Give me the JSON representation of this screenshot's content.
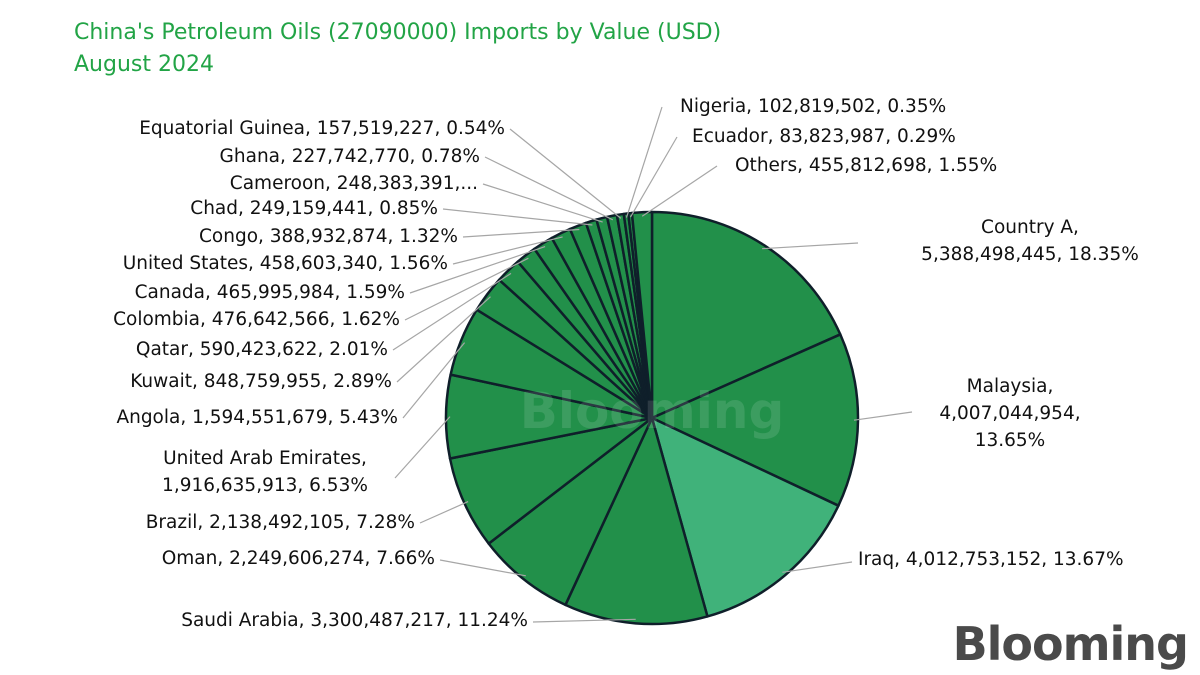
{
  "title_line1": "China's Petroleum Oils (27090000) Imports by Value (USD)",
  "title_line2": "August 2024",
  "watermark": "Blooming",
  "logo": "Blooming",
  "colors": {
    "title": "#22a446",
    "slice": "#22904a",
    "slice_highlight": "#40b27a",
    "stroke": "#0f1f2a"
  },
  "chart_data": {
    "type": "pie",
    "title": "China's Petroleum Oils (27090000) Imports by Value (USD) August 2024",
    "slices": [
      {
        "name": "Country A",
        "value": 5388498445,
        "percent": 18.35,
        "label": [
          "Country A,",
          "5,388,498,445, 18.35%"
        ]
      },
      {
        "name": "Malaysia",
        "value": 4007044954,
        "percent": 13.65,
        "label": [
          "Malaysia,",
          "4,007,044,954,",
          "13.65%"
        ]
      },
      {
        "name": "Iraq",
        "value": 4012753152,
        "percent": 13.67,
        "label": [
          "Iraq, 4,012,753,152, 13.67%"
        ]
      },
      {
        "name": "Saudi Arabia",
        "value": 3300487217,
        "percent": 11.24,
        "label": [
          "Saudi Arabia, 3,300,487,217, 11.24%"
        ]
      },
      {
        "name": "Oman",
        "value": 2249606274,
        "percent": 7.66,
        "label": [
          "Oman, 2,249,606,274, 7.66%"
        ]
      },
      {
        "name": "Brazil",
        "value": 2138492105,
        "percent": 7.28,
        "label": [
          "Brazil, 2,138,492,105, 7.28%"
        ]
      },
      {
        "name": "United Arab Emirates",
        "value": 1916635913,
        "percent": 6.53,
        "label": [
          "United Arab Emirates,",
          "1,916,635,913, 6.53%"
        ]
      },
      {
        "name": "Angola",
        "value": 1594551679,
        "percent": 5.43,
        "label": [
          "Angola, 1,594,551,679, 5.43%"
        ]
      },
      {
        "name": "Kuwait",
        "value": 848759955,
        "percent": 2.89,
        "label": [
          "Kuwait, 848,759,955, 2.89%"
        ]
      },
      {
        "name": "Qatar",
        "value": 590423622,
        "percent": 2.01,
        "label": [
          "Qatar, 590,423,622, 2.01%"
        ]
      },
      {
        "name": "Colombia",
        "value": 476642566,
        "percent": 1.62,
        "label": [
          "Colombia, 476,642,566, 1.62%"
        ]
      },
      {
        "name": "Canada",
        "value": 465995984,
        "percent": 1.59,
        "label": [
          "Canada, 465,995,984, 1.59%"
        ]
      },
      {
        "name": "United States",
        "value": 458603340,
        "percent": 1.56,
        "label": [
          "United States, 458,603,340, 1.56%"
        ]
      },
      {
        "name": "Congo",
        "value": 388932874,
        "percent": 1.32,
        "label": [
          "Congo, 388,932,874, 1.32%"
        ]
      },
      {
        "name": "Chad",
        "value": 249159441,
        "percent": 0.85,
        "label": [
          "Chad, 249,159,441, 0.85%"
        ]
      },
      {
        "name": "Cameroon",
        "value": 248383391,
        "percent": 0.85,
        "label": [
          "Cameroon, 248,383,391,..."
        ]
      },
      {
        "name": "Ghana",
        "value": 227742770,
        "percent": 0.78,
        "label": [
          "Ghana, 227,742,770, 0.78%"
        ]
      },
      {
        "name": "Equatorial Guinea",
        "value": 157519227,
        "percent": 0.54,
        "label": [
          "Equatorial Guinea, 157,519,227, 0.54%"
        ]
      },
      {
        "name": "Nigeria",
        "value": 102819502,
        "percent": 0.35,
        "label": [
          "Nigeria, 102,819,502, 0.35%"
        ]
      },
      {
        "name": "Ecuador",
        "value": 83823987,
        "percent": 0.29,
        "label": [
          "Ecuador, 83,823,987, 0.29%"
        ]
      },
      {
        "name": "Others",
        "value": 455812698,
        "percent": 1.55,
        "label": [
          "Others, 455,812,698, 1.55%"
        ]
      }
    ]
  }
}
